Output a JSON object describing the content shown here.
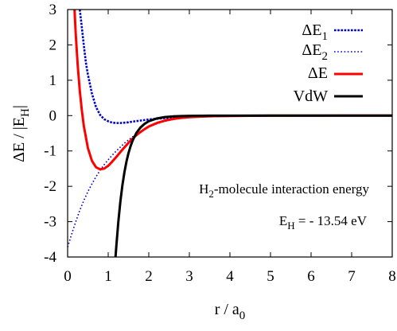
{
  "chart_data": {
    "type": "line",
    "title": "",
    "xlabel": {
      "base": "r / a",
      "sub": "0"
    },
    "ylabel": {
      "base": "ΔE / |E",
      "sub": "H",
      "tail": "|"
    },
    "xlim": [
      0,
      8
    ],
    "ylim": [
      -4,
      3
    ],
    "xticks": [
      0,
      1,
      2,
      3,
      4,
      5,
      6,
      7,
      8
    ],
    "yticks": [
      3,
      2,
      1,
      0,
      -1,
      -2,
      -3,
      -4
    ],
    "grid": false,
    "legend_position": "top-right",
    "annotations": [
      {
        "base": "H",
        "sub": "2",
        "tail": "-molecule interaction energy"
      },
      {
        "base": "E",
        "sub": "H",
        "tail": " = - 13.54 eV"
      }
    ],
    "series": [
      {
        "name": {
          "base": "ΔE",
          "sub": "1"
        },
        "color": "#0000cc",
        "style": "dense-dotted",
        "x": [
          0.3,
          0.35,
          0.4,
          0.45,
          0.5,
          0.6,
          0.7,
          0.8,
          0.9,
          1.0,
          1.1,
          1.2,
          1.3,
          1.4,
          1.5,
          1.6,
          1.8,
          2.0,
          2.2,
          2.4,
          2.6,
          2.8,
          3.0,
          3.3,
          3.6,
          4.0,
          4.5,
          5.0,
          6.0,
          7.0,
          8.0
        ],
        "y": [
          3.0,
          2.5,
          1.98,
          1.5,
          1.16,
          0.62,
          0.24,
          0.02,
          -0.1,
          -0.16,
          -0.2,
          -0.21,
          -0.21,
          -0.2,
          -0.19,
          -0.17,
          -0.14,
          -0.11,
          -0.09,
          -0.07,
          -0.05,
          -0.04,
          -0.03,
          -0.02,
          -0.015,
          -0.01,
          -0.006,
          -0.004,
          -0.002,
          -0.001,
          0.0
        ]
      },
      {
        "name": {
          "base": "ΔE",
          "sub": "2"
        },
        "color": "#0000cc",
        "style": "sparse-dotted",
        "x": [
          0.0,
          0.1,
          0.2,
          0.3,
          0.4,
          0.5,
          0.6,
          0.7,
          0.8,
          0.9,
          1.0,
          1.1,
          1.2,
          1.3,
          1.4,
          1.5,
          1.6,
          1.7,
          1.8,
          1.9,
          2.0,
          2.2,
          2.4,
          2.6,
          2.8,
          3.0,
          3.3,
          3.6,
          4.0,
          4.5,
          5.0,
          6.0,
          7.0,
          8.0
        ],
        "y": [
          -3.72,
          -3.35,
          -3.0,
          -2.68,
          -2.4,
          -2.15,
          -1.93,
          -1.73,
          -1.55,
          -1.39,
          -1.25,
          -1.12,
          -1.0,
          -0.89,
          -0.78,
          -0.69,
          -0.6,
          -0.52,
          -0.44,
          -0.38,
          -0.32,
          -0.23,
          -0.16,
          -0.11,
          -0.08,
          -0.055,
          -0.035,
          -0.022,
          -0.013,
          -0.007,
          -0.004,
          -0.002,
          -0.001,
          0.0
        ]
      },
      {
        "name": {
          "base": "ΔE",
          "sub": ""
        },
        "color": "#ff0000",
        "style": "solid",
        "x": [
          0.17,
          0.2,
          0.25,
          0.3,
          0.35,
          0.4,
          0.5,
          0.6,
          0.7,
          0.8,
          0.9,
          1.0,
          1.1,
          1.2,
          1.3,
          1.4,
          1.5,
          1.6,
          1.7,
          1.8,
          1.9,
          2.0,
          2.2,
          2.4,
          2.6,
          2.8,
          3.0,
          3.3,
          3.6,
          4.0,
          4.5,
          5.0,
          6.0,
          7.0,
          8.0
        ],
        "y": [
          3.0,
          2.3,
          1.4,
          0.7,
          0.15,
          -0.3,
          -0.92,
          -1.28,
          -1.46,
          -1.52,
          -1.5,
          -1.42,
          -1.3,
          -1.17,
          -1.03,
          -0.9,
          -0.77,
          -0.65,
          -0.55,
          -0.46,
          -0.38,
          -0.31,
          -0.21,
          -0.14,
          -0.095,
          -0.065,
          -0.045,
          -0.027,
          -0.017,
          -0.01,
          -0.005,
          -0.003,
          -0.001,
          -0.0005,
          0.0
        ]
      },
      {
        "name": {
          "base": "VdW",
          "sub": ""
        },
        "color": "#000000",
        "style": "solid",
        "x": [
          1.18,
          1.2,
          1.25,
          1.3,
          1.35,
          1.4,
          1.45,
          1.5,
          1.55,
          1.6,
          1.7,
          1.8,
          1.9,
          2.0,
          2.2,
          2.4,
          2.6,
          2.8,
          3.0,
          3.5,
          4.0,
          5.0,
          6.0,
          7.0,
          8.0
        ],
        "y": [
          -4.0,
          -3.7,
          -3.0,
          -2.43,
          -1.97,
          -1.6,
          -1.3,
          -1.06,
          -0.87,
          -0.71,
          -0.48,
          -0.33,
          -0.23,
          -0.16,
          -0.08,
          -0.042,
          -0.023,
          -0.013,
          -0.008,
          -0.003,
          -0.001,
          -0.0003,
          0.0,
          0.0,
          0.0
        ]
      }
    ]
  }
}
